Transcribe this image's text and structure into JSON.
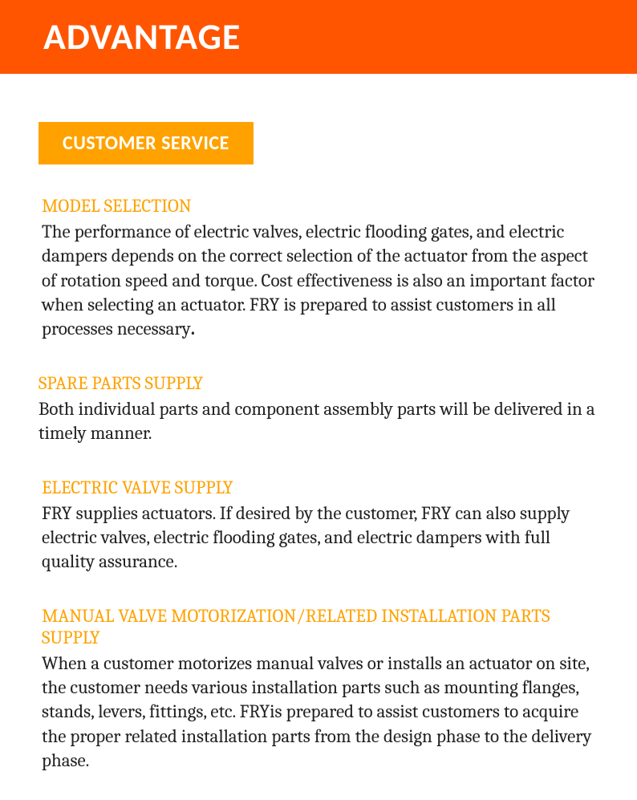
{
  "header": {
    "title": "ADVANTAGE"
  },
  "subheader": {
    "label": "CUSTOMER SERVICE"
  },
  "sections": [
    {
      "title": "MODEL SELECTION",
      "body": "The performance of electric valves, electric flooding gates, and electric dampers depends on the correct selection of the actuator from the aspect of rotation speed and torque. Cost effectiveness is also an important factor when selecting an actuator. FRY is prepared to assist customers in all processes necessary"
    },
    {
      "title": "SPARE PARTS SUPPLY",
      "body": "Both individual parts and component assembly parts will be delivered in a timely manner."
    },
    {
      "title": "ELECTRIC VALVE SUPPLY",
      "body": "FRY supplies actuators. If desired by the customer, FRY can also supply electric valves, electric flooding gates, and electric dampers with full quality assurance."
    },
    {
      "title": "MANUAL VALVE MOTORIZATION/RELATED INSTALLATION PARTS SUPPLY",
      "body": "When a customer motorizes manual valves or installs an actuator on site, the customer needs various installation parts such as mounting flanges, stands, levers, fittings, etc. FRYis prepared to assist customers to acquire the proper related installation parts from the design phase to the delivery phase."
    }
  ],
  "colors": {
    "header_bg": "#ff5500",
    "badge_bg": "#ffa200",
    "title_orange": "#ffa200",
    "body_text": "#222222",
    "white": "#ffffff"
  }
}
